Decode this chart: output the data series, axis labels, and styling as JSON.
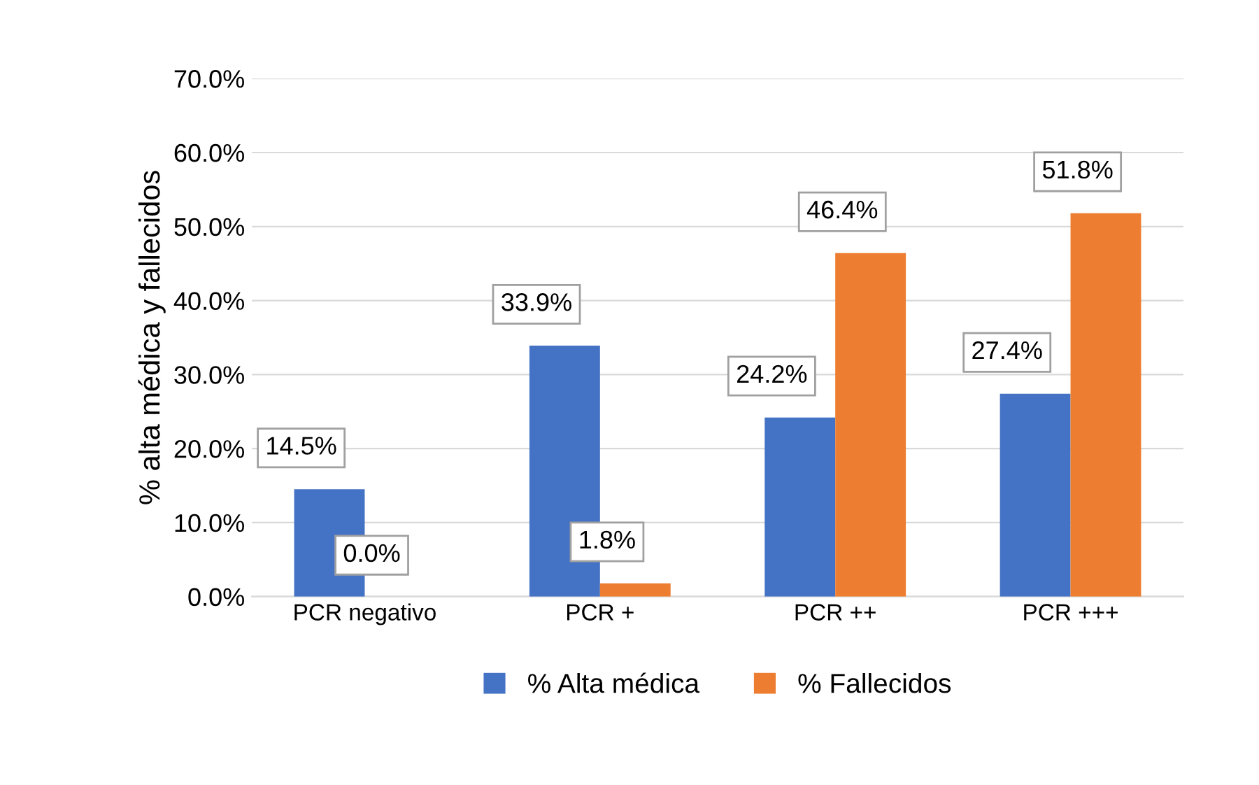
{
  "chart_data": {
    "type": "bar",
    "ylabel": "% alta médica y fallecidos",
    "categories": [
      "PCR negativo",
      "PCR +",
      "PCR ++",
      "PCR +++"
    ],
    "series": [
      {
        "name": "% Alta médica",
        "color": "#4472c4",
        "values": [
          14.5,
          33.9,
          24.2,
          27.4
        ],
        "value_labels": [
          "14.5%",
          "33.9%",
          "24.2%",
          "27.4%"
        ]
      },
      {
        "name": "% Fallecidos",
        "color": "#ed7d31",
        "values": [
          0.0,
          1.8,
          46.4,
          51.8
        ],
        "value_labels": [
          "0.0%",
          "1.8%",
          "46.4%",
          "51.8%"
        ]
      }
    ],
    "ylim": [
      0,
      70
    ],
    "yticks": [
      {
        "value": 0,
        "label": "0.0%"
      },
      {
        "value": 10,
        "label": "10.0%"
      },
      {
        "value": 20,
        "label": "20.0%"
      },
      {
        "value": 30,
        "label": "30.0%"
      },
      {
        "value": 40,
        "label": "40.0%"
      },
      {
        "value": 50,
        "label": "50.0%"
      },
      {
        "value": 60,
        "label": "60.0%"
      },
      {
        "value": 70,
        "label": "70.0%"
      }
    ],
    "grid": "y",
    "legend": "bottom"
  }
}
